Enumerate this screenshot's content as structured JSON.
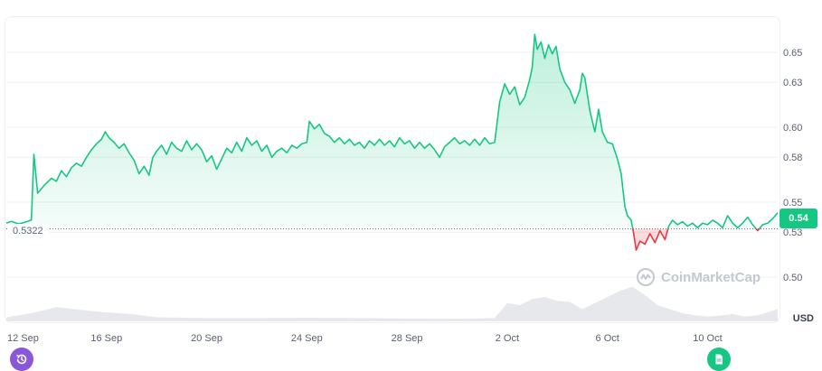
{
  "chart_data": {
    "type": "area",
    "x_ticks": [
      "12 Sep",
      "16 Sep",
      "20 Sep",
      "24 Sep",
      "28 Sep",
      "2 Oct",
      "6 Oct",
      "10 Oct"
    ],
    "y_ticks": [
      "0.50",
      "0.53",
      "0.55",
      "0.58",
      "0.60",
      "0.63",
      "0.65"
    ],
    "ylim": [
      0.48,
      0.675
    ],
    "xlim_days": [
      0,
      30.8
    ],
    "baseline": 0.5322,
    "baseline_label": "0.5322",
    "current_label": "0.54",
    "unit": "USD",
    "colors": {
      "up": "#16c784",
      "down": "#ea3943",
      "volume": "#e6e8ec"
    },
    "price_series": [
      [
        0.0,
        0.5361
      ],
      [
        0.2,
        0.5372
      ],
      [
        0.5,
        0.5355
      ],
      [
        0.8,
        0.5369
      ],
      [
        1.0,
        0.5381
      ],
      [
        1.1,
        0.582
      ],
      [
        1.25,
        0.556
      ],
      [
        1.5,
        0.561
      ],
      [
        1.8,
        0.566
      ],
      [
        2.0,
        0.564
      ],
      [
        2.2,
        0.571
      ],
      [
        2.4,
        0.567
      ],
      [
        2.6,
        0.573
      ],
      [
        2.8,
        0.576
      ],
      [
        3.0,
        0.574
      ],
      [
        3.2,
        0.58
      ],
      [
        3.4,
        0.585
      ],
      [
        3.6,
        0.589
      ],
      [
        3.8,
        0.592
      ],
      [
        3.95,
        0.597
      ],
      [
        4.1,
        0.593
      ],
      [
        4.3,
        0.59
      ],
      [
        4.5,
        0.586
      ],
      [
        4.7,
        0.589
      ],
      [
        4.9,
        0.583
      ],
      [
        5.1,
        0.578
      ],
      [
        5.3,
        0.569
      ],
      [
        5.5,
        0.574
      ],
      [
        5.7,
        0.568
      ],
      [
        5.85,
        0.58
      ],
      [
        6.0,
        0.584
      ],
      [
        6.2,
        0.588
      ],
      [
        6.4,
        0.582
      ],
      [
        6.6,
        0.59
      ],
      [
        6.8,
        0.586
      ],
      [
        7.0,
        0.584
      ],
      [
        7.2,
        0.591
      ],
      [
        7.4,
        0.585
      ],
      [
        7.6,
        0.589
      ],
      [
        7.8,
        0.585
      ],
      [
        8.0,
        0.577
      ],
      [
        8.2,
        0.581
      ],
      [
        8.4,
        0.572
      ],
      [
        8.6,
        0.579
      ],
      [
        8.8,
        0.586
      ],
      [
        9.0,
        0.583
      ],
      [
        9.2,
        0.59
      ],
      [
        9.4,
        0.584
      ],
      [
        9.6,
        0.593
      ],
      [
        9.8,
        0.588
      ],
      [
        10.0,
        0.591
      ],
      [
        10.2,
        0.584
      ],
      [
        10.4,
        0.588
      ],
      [
        10.6,
        0.58
      ],
      [
        10.8,
        0.584
      ],
      [
        11.0,
        0.586
      ],
      [
        11.2,
        0.583
      ],
      [
        11.4,
        0.588
      ],
      [
        11.6,
        0.586
      ],
      [
        11.8,
        0.589
      ],
      [
        12.0,
        0.59
      ],
      [
        12.1,
        0.604
      ],
      [
        12.3,
        0.599
      ],
      [
        12.5,
        0.602
      ],
      [
        12.7,
        0.596
      ],
      [
        12.9,
        0.594
      ],
      [
        13.1,
        0.59
      ],
      [
        13.3,
        0.593
      ],
      [
        13.5,
        0.589
      ],
      [
        13.7,
        0.592
      ],
      [
        13.9,
        0.588
      ],
      [
        14.1,
        0.59
      ],
      [
        14.3,
        0.586
      ],
      [
        14.5,
        0.591
      ],
      [
        14.7,
        0.588
      ],
      [
        14.9,
        0.592
      ],
      [
        15.1,
        0.588
      ],
      [
        15.3,
        0.591
      ],
      [
        15.5,
        0.587
      ],
      [
        15.7,
        0.593
      ],
      [
        15.9,
        0.589
      ],
      [
        16.1,
        0.591
      ],
      [
        16.3,
        0.586
      ],
      [
        16.5,
        0.59
      ],
      [
        16.7,
        0.586
      ],
      [
        16.9,
        0.589
      ],
      [
        17.1,
        0.585
      ],
      [
        17.3,
        0.58
      ],
      [
        17.5,
        0.587
      ],
      [
        17.7,
        0.59
      ],
      [
        17.9,
        0.593
      ],
      [
        18.1,
        0.589
      ],
      [
        18.3,
        0.591
      ],
      [
        18.5,
        0.588
      ],
      [
        18.7,
        0.592
      ],
      [
        18.9,
        0.588
      ],
      [
        19.1,
        0.593
      ],
      [
        19.3,
        0.589
      ],
      [
        19.5,
        0.59
      ],
      [
        19.7,
        0.617
      ],
      [
        19.9,
        0.629
      ],
      [
        20.1,
        0.622
      ],
      [
        20.3,
        0.627
      ],
      [
        20.5,
        0.615
      ],
      [
        20.7,
        0.62
      ],
      [
        20.9,
        0.632
      ],
      [
        21.0,
        0.64
      ],
      [
        21.1,
        0.662
      ],
      [
        21.2,
        0.652
      ],
      [
        21.35,
        0.657
      ],
      [
        21.5,
        0.646
      ],
      [
        21.65,
        0.655
      ],
      [
        21.8,
        0.649
      ],
      [
        21.95,
        0.654
      ],
      [
        22.1,
        0.639
      ],
      [
        22.3,
        0.63
      ],
      [
        22.5,
        0.625
      ],
      [
        22.7,
        0.616
      ],
      [
        22.9,
        0.625
      ],
      [
        23.0,
        0.636
      ],
      [
        23.1,
        0.633
      ],
      [
        23.3,
        0.611
      ],
      [
        23.5,
        0.597
      ],
      [
        23.65,
        0.612
      ],
      [
        23.8,
        0.597
      ],
      [
        24.0,
        0.59
      ],
      [
        24.2,
        0.589
      ],
      [
        24.4,
        0.579
      ],
      [
        24.55,
        0.569
      ],
      [
        24.7,
        0.547
      ],
      [
        24.8,
        0.541
      ],
      [
        24.95,
        0.538
      ],
      [
        25.05,
        0.529
      ],
      [
        25.15,
        0.518
      ],
      [
        25.3,
        0.524
      ],
      [
        25.5,
        0.522
      ],
      [
        25.7,
        0.529
      ],
      [
        25.9,
        0.523
      ],
      [
        26.1,
        0.531
      ],
      [
        26.3,
        0.525
      ],
      [
        26.45,
        0.534
      ],
      [
        26.6,
        0.538
      ],
      [
        26.8,
        0.535
      ],
      [
        27.0,
        0.537
      ],
      [
        27.2,
        0.534
      ],
      [
        27.4,
        0.536
      ],
      [
        27.6,
        0.533
      ],
      [
        27.8,
        0.536
      ],
      [
        28.0,
        0.535
      ],
      [
        28.2,
        0.538
      ],
      [
        28.4,
        0.536
      ],
      [
        28.6,
        0.533
      ],
      [
        28.8,
        0.541
      ],
      [
        29.0,
        0.536
      ],
      [
        29.2,
        0.533
      ],
      [
        29.4,
        0.536
      ],
      [
        29.6,
        0.54
      ],
      [
        29.8,
        0.535
      ],
      [
        30.0,
        0.531
      ],
      [
        30.2,
        0.535
      ],
      [
        30.4,
        0.536
      ],
      [
        30.6,
        0.539
      ],
      [
        30.8,
        0.543
      ]
    ],
    "volume_series": [
      [
        0.0,
        0.1
      ],
      [
        1.0,
        0.2
      ],
      [
        2.0,
        0.35
      ],
      [
        3.0,
        0.28
      ],
      [
        4.0,
        0.22
      ],
      [
        5.0,
        0.18
      ],
      [
        6.0,
        0.1
      ],
      [
        8.0,
        0.08
      ],
      [
        10.0,
        0.08
      ],
      [
        12.0,
        0.09
      ],
      [
        14.0,
        0.08
      ],
      [
        16.0,
        0.07
      ],
      [
        18.0,
        0.06
      ],
      [
        19.5,
        0.08
      ],
      [
        20.0,
        0.45
      ],
      [
        20.5,
        0.4
      ],
      [
        21.0,
        0.55
      ],
      [
        21.5,
        0.6
      ],
      [
        22.0,
        0.5
      ],
      [
        22.5,
        0.48
      ],
      [
        23.0,
        0.3
      ],
      [
        23.5,
        0.45
      ],
      [
        24.0,
        0.6
      ],
      [
        24.5,
        0.75
      ],
      [
        25.0,
        0.85
      ],
      [
        25.5,
        0.65
      ],
      [
        26.0,
        0.4
      ],
      [
        26.5,
        0.3
      ],
      [
        27.0,
        0.2
      ],
      [
        27.5,
        0.15
      ],
      [
        28.0,
        0.12
      ],
      [
        28.5,
        0.14
      ],
      [
        29.0,
        0.18
      ],
      [
        29.5,
        0.12
      ],
      [
        30.0,
        0.15
      ],
      [
        30.8,
        0.3
      ]
    ]
  },
  "watermark": "CoinMarketCap",
  "icons": {
    "history": "history-icon",
    "notes": "document-icon"
  }
}
